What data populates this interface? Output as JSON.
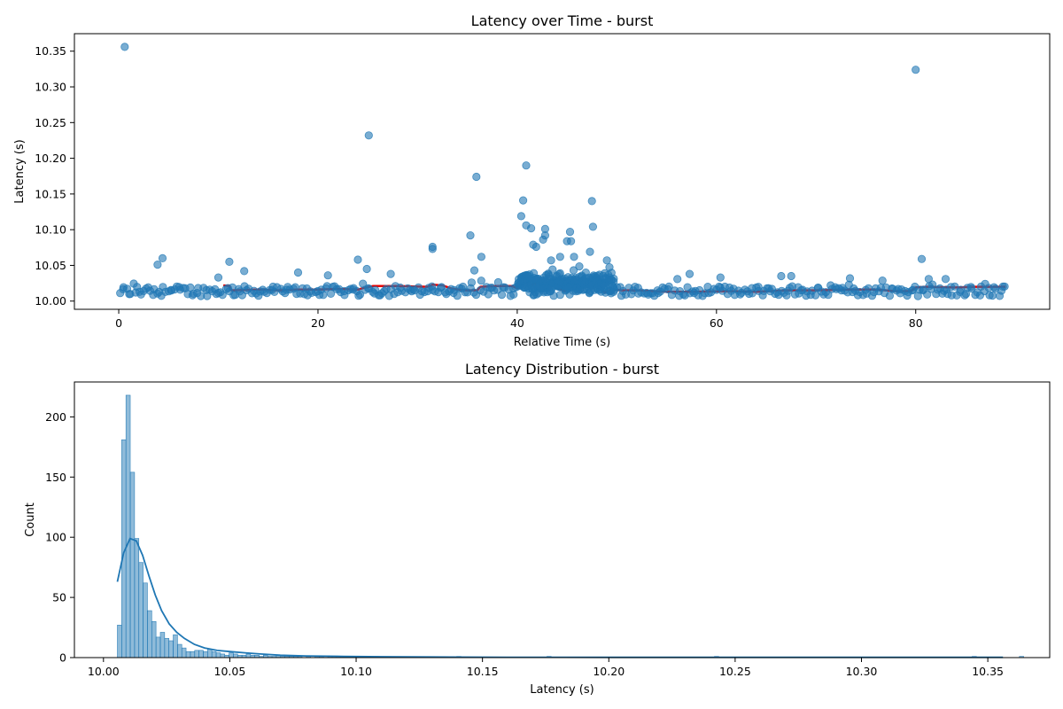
{
  "chart_data": [
    {
      "type": "scatter",
      "title": "Latency over Time - burst",
      "xlabel": "Relative Time (s)",
      "ylabel": "Latency (s)",
      "xlim": [
        -4.45,
        93.45
      ],
      "ylim": [
        9.9885,
        10.3745
      ],
      "xticks": [
        0,
        20,
        40,
        60,
        80
      ],
      "yticks": [
        10.0,
        10.05,
        10.1,
        10.15,
        10.2,
        10.25,
        10.3,
        10.35
      ],
      "ytick_decimals": 2,
      "grid": false,
      "colors": {
        "points": "#1f77b4",
        "rolling": "#e50000"
      },
      "series": [
        {
          "kind": "points",
          "outliers": [
            [
              0.6,
              10.356
            ],
            [
              4.4,
              10.06
            ],
            [
              3.9,
              10.051
            ],
            [
              10.0,
              10.033
            ],
            [
              11.1,
              10.055
            ],
            [
              12.6,
              10.042
            ],
            [
              18.0,
              10.04
            ],
            [
              21.0,
              10.036
            ],
            [
              24.0,
              10.058
            ],
            [
              24.9,
              10.045
            ],
            [
              25.1,
              10.232
            ],
            [
              27.3,
              10.038
            ],
            [
              31.5,
              10.073
            ],
            [
              31.5,
              10.076
            ],
            [
              35.3,
              10.092
            ],
            [
              35.7,
              10.043
            ],
            [
              35.9,
              10.174
            ],
            [
              36.4,
              10.062
            ],
            [
              40.4,
              10.119
            ],
            [
              40.6,
              10.141
            ],
            [
              40.9,
              10.19
            ],
            [
              40.9,
              10.106
            ],
            [
              41.4,
              10.102
            ],
            [
              41.6,
              10.079
            ],
            [
              41.9,
              10.076
            ],
            [
              42.6,
              10.086
            ],
            [
              42.8,
              10.101
            ],
            [
              42.8,
              10.092
            ],
            [
              43.4,
              10.057
            ],
            [
              44.3,
              10.062
            ],
            [
              45.0,
              10.084
            ],
            [
              45.3,
              10.097
            ],
            [
              45.4,
              10.084
            ],
            [
              45.7,
              10.062
            ],
            [
              47.3,
              10.069
            ],
            [
              47.5,
              10.14
            ],
            [
              47.6,
              10.104
            ],
            [
              49.0,
              10.057
            ],
            [
              57.3,
              10.038
            ],
            [
              60.4,
              10.033
            ],
            [
              66.5,
              10.035
            ],
            [
              67.5,
              10.035
            ],
            [
              73.4,
              10.032
            ],
            [
              80.0,
              10.324
            ],
            [
              80.6,
              10.059
            ],
            [
              81.3,
              10.031
            ],
            [
              83.0,
              10.031
            ]
          ]
        },
        {
          "kind": "rolling-median",
          "points": [
            [
              10.5,
              10.022
            ],
            [
              11.1,
              10.021
            ],
            [
              11.3,
              10.015
            ],
            [
              14.0,
              10.016
            ],
            [
              16.0,
              10.015
            ],
            [
              18.0,
              10.016
            ],
            [
              20.0,
              10.016
            ],
            [
              22.0,
              10.017
            ],
            [
              24.0,
              10.016
            ],
            [
              24.5,
              10.018
            ],
            [
              25.5,
              10.021
            ],
            [
              28.0,
              10.021
            ],
            [
              31.0,
              10.02
            ],
            [
              31.5,
              10.023
            ],
            [
              32.5,
              10.022
            ],
            [
              33.5,
              10.017
            ],
            [
              35.0,
              10.015
            ],
            [
              36.0,
              10.015
            ],
            [
              36.3,
              10.02
            ],
            [
              38.0,
              10.021
            ],
            [
              39.5,
              10.021
            ],
            [
              40.0,
              10.018
            ],
            [
              40.6,
              10.022
            ],
            [
              41.2,
              10.026
            ],
            [
              41.6,
              10.022
            ],
            [
              42.0,
              10.028
            ],
            [
              42.5,
              10.021
            ],
            [
              43.0,
              10.017
            ],
            [
              43.6,
              10.021
            ],
            [
              44.2,
              10.017
            ],
            [
              44.8,
              10.014
            ],
            [
              45.3,
              10.019
            ],
            [
              45.8,
              10.024
            ],
            [
              46.4,
              10.017
            ],
            [
              47.0,
              10.023
            ],
            [
              47.6,
              10.027
            ],
            [
              48.2,
              10.019
            ],
            [
              48.8,
              10.012
            ],
            [
              49.4,
              10.016
            ],
            [
              50.5,
              10.015
            ],
            [
              52.0,
              10.015
            ],
            [
              55.0,
              10.013
            ],
            [
              58.0,
              10.013
            ],
            [
              61.0,
              10.014
            ],
            [
              64.0,
              10.013
            ],
            [
              67.0,
              10.015
            ],
            [
              70.0,
              10.015
            ],
            [
              73.0,
              10.016
            ],
            [
              76.0,
              10.016
            ],
            [
              78.0,
              10.014
            ],
            [
              79.5,
              10.014
            ],
            [
              80.0,
              10.019
            ],
            [
              81.0,
              10.02
            ],
            [
              84.0,
              10.019
            ],
            [
              86.0,
              10.02
            ],
            [
              89.0,
              10.02
            ]
          ]
        }
      ]
    },
    {
      "type": "histogram",
      "title": "Latency Distribution - burst",
      "xlabel": "Latency (s)",
      "ylabel": "Count",
      "xlim": [
        9.9885,
        10.3745
      ],
      "ylim": [
        0,
        229
      ],
      "xticks": [
        10.0,
        10.05,
        10.1,
        10.15,
        10.2,
        10.25,
        10.3,
        10.35
      ],
      "xtick_decimals": 2,
      "yticks": [
        0,
        50,
        100,
        150,
        200
      ],
      "grid": false,
      "colors": {
        "bars": "#1f77b4",
        "kde": "#1f77b4"
      },
      "bin_start": 10.0055,
      "bin_width": 0.0017,
      "counts": [
        27,
        181,
        218,
        154,
        99,
        79,
        62,
        39,
        30,
        17,
        21,
        16,
        14,
        19,
        11,
        8,
        5,
        5,
        6,
        6,
        5,
        7,
        5,
        4,
        3,
        2,
        4,
        3,
        2,
        2,
        3,
        2,
        2,
        1,
        2,
        1,
        1,
        2,
        1,
        1,
        1,
        1,
        1,
        0,
        1,
        0,
        1,
        1,
        0,
        1,
        1,
        1,
        1,
        1,
        1,
        0,
        0,
        0,
        0,
        0,
        1,
        0,
        0,
        0,
        0,
        0,
        0,
        0,
        0,
        0,
        0,
        0,
        0,
        0,
        0,
        0,
        0,
        0,
        0,
        1,
        0,
        0,
        0,
        0,
        0,
        0,
        0,
        0,
        0,
        0,
        0,
        0,
        0,
        0,
        0,
        0,
        0,
        0,
        0,
        0,
        1,
        0,
        0,
        0,
        0,
        0,
        0,
        0,
        0,
        0,
        0,
        0,
        0,
        0,
        0,
        0,
        0,
        0,
        0,
        0,
        0,
        0,
        0,
        0,
        0,
        0,
        0,
        0,
        0,
        0,
        0,
        0,
        0,
        0,
        0,
        0,
        0,
        0,
        0,
        1,
        0,
        0,
        0,
        0,
        0,
        0,
        0,
        0,
        0,
        0,
        0,
        0,
        0,
        0,
        0,
        0,
        0,
        0,
        0,
        0,
        0,
        0,
        0,
        0,
        0,
        0,
        0,
        0,
        0,
        0,
        0,
        0,
        0,
        0,
        0,
        0,
        0,
        0,
        0,
        0,
        0,
        0,
        0,
        0,
        0,
        0,
        0,
        0,
        0,
        0,
        0,
        0,
        0,
        0,
        0,
        0,
        0,
        0,
        0,
        1,
        0,
        0,
        0,
        0,
        0,
        0,
        0,
        0,
        0,
        0,
        1
      ],
      "kde": [
        [
          10.0055,
          63
        ],
        [
          10.008,
          87
        ],
        [
          10.0105,
          99
        ],
        [
          10.013,
          97
        ],
        [
          10.0155,
          85
        ],
        [
          10.018,
          68
        ],
        [
          10.0205,
          52
        ],
        [
          10.023,
          39
        ],
        [
          10.026,
          28
        ],
        [
          10.029,
          21
        ],
        [
          10.032,
          16
        ],
        [
          10.036,
          11
        ],
        [
          10.04,
          8
        ],
        [
          10.045,
          6
        ],
        [
          10.05,
          5
        ],
        [
          10.056,
          4
        ],
        [
          10.062,
          3
        ],
        [
          10.07,
          2
        ],
        [
          10.08,
          1.4
        ],
        [
          10.095,
          1.0
        ],
        [
          10.11,
          0.7
        ],
        [
          10.13,
          0.5
        ],
        [
          10.16,
          0.3
        ],
        [
          10.2,
          0.25
        ],
        [
          10.25,
          0.2
        ],
        [
          10.3,
          0.2
        ],
        [
          10.33,
          0.2
        ],
        [
          10.356,
          0.2
        ]
      ]
    }
  ]
}
